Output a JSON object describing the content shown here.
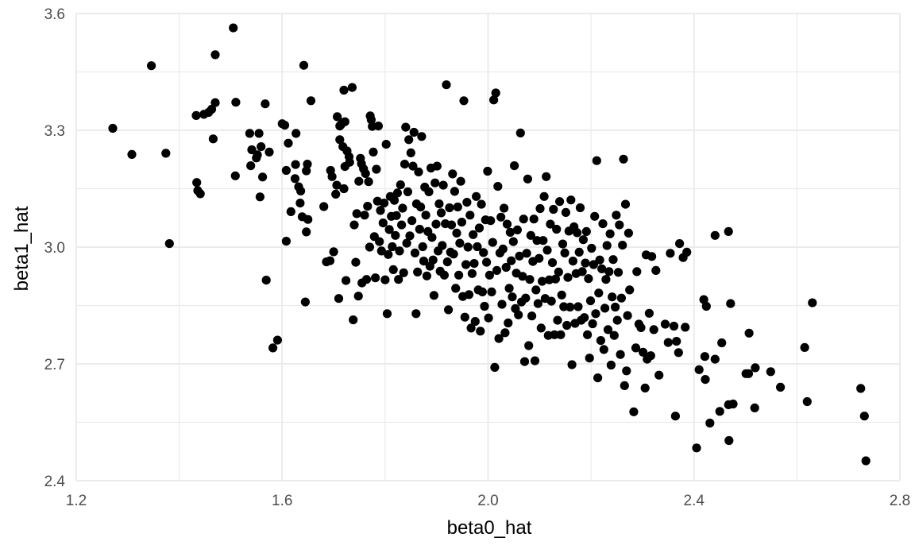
{
  "chart_data": {
    "type": "scatter",
    "title": "",
    "xlabel": "beta0_hat",
    "ylabel": "beta1_hat",
    "xlim": [
      1.2,
      2.8
    ],
    "ylim": [
      2.4,
      3.6
    ],
    "x_ticks": [
      1.2,
      1.6,
      2.0,
      2.4,
      2.8
    ],
    "y_ticks": [
      2.4,
      2.7,
      3.0,
      3.3,
      3.6
    ],
    "x_tick_labels": [
      "1.2",
      "1.6",
      "2.0",
      "2.4",
      "2.8"
    ],
    "y_tick_labels": [
      "2.4",
      "2.7",
      "3.0",
      "3.3",
      "3.6"
    ],
    "x_minor": [
      1.4,
      1.8,
      2.2,
      2.6
    ],
    "y_minor": [
      2.55,
      2.85,
      3.15,
      3.45
    ],
    "grid": true,
    "legend": "none",
    "point_color": "#000000",
    "points": [
      [
        1.271,
        3.305
      ],
      [
        1.308,
        3.238
      ],
      [
        1.346,
        3.466
      ],
      [
        1.374,
        3.241
      ],
      [
        1.381,
        3.009
      ],
      [
        1.433,
        3.338
      ],
      [
        1.434,
        3.166
      ],
      [
        1.436,
        3.145
      ],
      [
        1.441,
        3.137
      ],
      [
        1.448,
        3.341
      ],
      [
        1.457,
        3.346
      ],
      [
        1.463,
        3.354
      ],
      [
        1.466,
        3.278
      ],
      [
        1.47,
        3.371
      ],
      [
        1.47,
        3.494
      ],
      [
        1.505,
        3.563
      ],
      [
        1.51,
        3.372
      ],
      [
        1.509,
        3.183
      ],
      [
        1.537,
        3.292
      ],
      [
        1.539,
        3.209
      ],
      [
        1.541,
        3.25
      ],
      [
        1.55,
        3.229
      ],
      [
        1.552,
        3.237
      ],
      [
        1.555,
        3.292
      ],
      [
        1.557,
        3.129
      ],
      [
        1.559,
        3.258
      ],
      [
        1.562,
        3.18
      ],
      [
        1.567,
        3.368
      ],
      [
        1.569,
        2.915
      ],
      [
        1.575,
        3.244
      ],
      [
        1.582,
        2.741
      ],
      [
        1.591,
        2.761
      ],
      [
        1.6,
        3.317
      ],
      [
        1.605,
        3.313
      ],
      [
        1.608,
        3.197
      ],
      [
        1.608,
        3.015
      ],
      [
        1.612,
        3.267
      ],
      [
        1.617,
        3.091
      ],
      [
        1.626,
        3.212
      ],
      [
        1.625,
        3.176
      ],
      [
        1.627,
        3.292
      ],
      [
        1.632,
        3.155
      ],
      [
        1.635,
        3.113
      ],
      [
        1.636,
        3.144
      ],
      [
        1.639,
        3.078
      ],
      [
        1.642,
        3.467
      ],
      [
        1.645,
        2.859
      ],
      [
        1.647,
        3.196
      ],
      [
        1.647,
        3.039
      ],
      [
        1.649,
        3.213
      ],
      [
        1.65,
        3.071
      ],
      [
        1.656,
        3.376
      ],
      [
        1.681,
        3.104
      ],
      [
        1.686,
        2.962
      ],
      [
        1.693,
        2.965
      ],
      [
        1.694,
        3.197
      ],
      [
        1.697,
        3.181
      ],
      [
        1.7,
        2.988
      ],
      [
        1.704,
        3.136
      ],
      [
        1.706,
        3.159
      ],
      [
        1.707,
        3.335
      ],
      [
        1.71,
        2.868
      ],
      [
        1.712,
        3.311
      ],
      [
        1.712,
        3.276
      ],
      [
        1.714,
        3.314
      ],
      [
        1.718,
        3.258
      ],
      [
        1.718,
        3.32
      ],
      [
        1.72,
        3.403
      ],
      [
        1.72,
        3.15
      ],
      [
        1.722,
        3.322
      ],
      [
        1.722,
        3.207
      ],
      [
        1.724,
        2.914
      ],
      [
        1.726,
        3.247
      ],
      [
        1.73,
        3.232
      ],
      [
        1.731,
        3.218
      ],
      [
        1.736,
        3.41
      ],
      [
        1.738,
        2.813
      ],
      [
        1.74,
        3.057
      ],
      [
        1.743,
        2.961
      ],
      [
        1.745,
        3.086
      ],
      [
        1.748,
        2.874
      ],
      [
        1.749,
        3.169
      ],
      [
        1.752,
        3.228
      ],
      [
        1.754,
        3.214
      ],
      [
        1.755,
        2.908
      ],
      [
        1.758,
        3.201
      ],
      [
        1.76,
        3.082
      ],
      [
        1.762,
        3.189
      ],
      [
        1.764,
        2.917
      ],
      [
        1.766,
        3.105
      ],
      [
        1.768,
        3.168
      ],
      [
        1.77,
        3.0
      ],
      [
        1.771,
        3.337
      ],
      [
        1.773,
        3.327
      ],
      [
        1.775,
        3.31
      ],
      [
        1.777,
        3.244
      ],
      [
        1.779,
        3.027
      ],
      [
        1.781,
        2.921
      ],
      [
        1.783,
        3.2
      ],
      [
        1.785,
        3.118
      ],
      [
        1.787,
        3.311
      ],
      [
        1.789,
        3.014
      ],
      [
        1.791,
        3.094
      ],
      [
        1.793,
        2.99
      ],
      [
        1.796,
        3.062
      ],
      [
        1.798,
        3.113
      ],
      [
        1.8,
        2.916
      ],
      [
        1.802,
        3.264
      ],
      [
        1.804,
        2.829
      ],
      [
        1.806,
        2.981
      ],
      [
        1.808,
        3.045
      ],
      [
        1.81,
        3.13
      ],
      [
        1.812,
        3.079
      ],
      [
        1.814,
        3.001
      ],
      [
        1.816,
        2.942
      ],
      [
        1.818,
        3.12
      ],
      [
        1.82,
        3.03
      ],
      [
        1.822,
        3.081
      ],
      [
        1.824,
        3.139
      ],
      [
        1.826,
        2.917
      ],
      [
        1.828,
        2.99
      ],
      [
        1.83,
        3.16
      ],
      [
        1.832,
        3.057
      ],
      [
        1.834,
        3.1
      ],
      [
        1.836,
        2.934
      ],
      [
        1.838,
        3.213
      ],
      [
        1.84,
        3.308
      ],
      [
        1.842,
        3.01
      ],
      [
        1.844,
        3.142
      ],
      [
        1.846,
        3.276
      ],
      [
        1.848,
        3.029
      ],
      [
        1.85,
        3.242
      ],
      [
        1.852,
        3.068
      ],
      [
        1.854,
        3.208
      ],
      [
        1.856,
        3.295
      ],
      [
        1.858,
        2.985
      ],
      [
        1.86,
        2.829
      ],
      [
        1.861,
        3.111
      ],
      [
        1.863,
        2.936
      ],
      [
        1.865,
        3.193
      ],
      [
        1.867,
        3.046
      ],
      [
        1.869,
        3.103
      ],
      [
        1.871,
        3.284
      ],
      [
        1.873,
        3.001
      ],
      [
        1.875,
        2.964
      ],
      [
        1.877,
        3.154
      ],
      [
        1.879,
        3.082
      ],
      [
        1.881,
        2.926
      ],
      [
        1.883,
        3.04
      ],
      [
        1.885,
        3.142
      ],
      [
        1.887,
        2.951
      ],
      [
        1.889,
        3.203
      ],
      [
        1.891,
        3.025
      ],
      [
        1.893,
        2.967
      ],
      [
        1.895,
        2.876
      ],
      [
        1.897,
        3.165
      ],
      [
        1.899,
        3.059
      ],
      [
        1.901,
        3.208
      ],
      [
        1.903,
        2.99
      ],
      [
        1.905,
        3.111
      ],
      [
        1.907,
        2.938
      ],
      [
        1.909,
        3.088
      ],
      [
        1.911,
        3.004
      ],
      [
        1.913,
        3.159
      ],
      [
        1.915,
        2.928
      ],
      [
        1.917,
        3.06
      ],
      [
        1.919,
        3.417
      ],
      [
        1.921,
        2.962
      ],
      [
        1.923,
        2.839
      ],
      [
        1.925,
        3.101
      ],
      [
        1.927,
        2.987
      ],
      [
        1.929,
        3.057
      ],
      [
        1.931,
        3.188
      ],
      [
        1.933,
        2.982
      ],
      [
        1.935,
        3.143
      ],
      [
        1.937,
        2.894
      ],
      [
        1.939,
        3.036
      ],
      [
        1.941,
        3.103
      ],
      [
        1.943,
        2.928
      ],
      [
        1.945,
        3.01
      ],
      [
        1.947,
        3.169
      ],
      [
        1.949,
        3.064
      ],
      [
        1.951,
        2.873
      ],
      [
        1.953,
        3.376
      ],
      [
        1.955,
        2.82
      ],
      [
        1.957,
        2.955
      ],
      [
        1.959,
        3.115
      ],
      [
        1.961,
        3.0
      ],
      [
        1.963,
        2.878
      ],
      [
        1.965,
        3.082
      ],
      [
        1.967,
        2.792
      ],
      [
        1.969,
        2.932
      ],
      [
        1.971,
        3.032
      ],
      [
        1.973,
        2.958
      ],
      [
        1.975,
        2.809
      ],
      [
        1.977,
        3.13
      ],
      [
        1.979,
        3.001
      ],
      [
        1.981,
        2.89
      ],
      [
        1.983,
        3.049
      ],
      [
        1.985,
        2.784
      ],
      [
        1.987,
        3.11
      ],
      [
        1.989,
        2.885
      ],
      [
        1.991,
        2.986
      ],
      [
        1.993,
        2.848
      ],
      [
        1.995,
        3.07
      ],
      [
        1.997,
        2.961
      ],
      [
        1.999,
        3.195
      ],
      [
        2.001,
        2.818
      ],
      [
        2.003,
        2.928
      ],
      [
        2.005,
        3.068
      ],
      [
        2.007,
        2.885
      ],
      [
        2.009,
        3.012
      ],
      [
        2.011,
        3.378
      ],
      [
        2.013,
        2.691
      ],
      [
        2.015,
        3.396
      ],
      [
        2.017,
        2.94
      ],
      [
        2.019,
        3.156
      ],
      [
        2.021,
        2.765
      ],
      [
        2.023,
        2.985
      ],
      [
        2.025,
        3.077
      ],
      [
        2.027,
        2.853
      ],
      [
        2.029,
        2.995
      ],
      [
        2.031,
        3.1
      ],
      [
        2.033,
        2.78
      ],
      [
        2.035,
        2.948
      ],
      [
        2.037,
        3.059
      ],
      [
        2.039,
        2.805
      ],
      [
        2.041,
        2.894
      ],
      [
        2.043,
        3.038
      ],
      [
        2.045,
        2.965
      ],
      [
        2.047,
        2.872
      ],
      [
        2.049,
        3.014
      ],
      [
        2.051,
        3.209
      ],
      [
        2.053,
        2.842
      ],
      [
        2.055,
        2.933
      ],
      [
        2.057,
        3.044
      ],
      [
        2.059,
        2.826
      ],
      [
        2.061,
        2.977
      ],
      [
        2.063,
        3.293
      ],
      [
        2.065,
        2.859
      ],
      [
        2.067,
        2.925
      ],
      [
        2.069,
        3.072
      ],
      [
        2.071,
        2.706
      ],
      [
        2.073,
        2.869
      ],
      [
        2.075,
        2.984
      ],
      [
        2.077,
        3.175
      ],
      [
        2.079,
        2.747
      ],
      [
        2.081,
        2.917
      ],
      [
        2.083,
        3.03
      ],
      [
        2.085,
        2.823
      ],
      [
        2.087,
        2.963
      ],
      [
        2.089,
        3.072
      ],
      [
        2.091,
        2.708
      ],
      [
        2.093,
        2.89
      ],
      [
        2.095,
        3.017
      ],
      [
        2.097,
        2.855
      ],
      [
        2.099,
        2.971
      ],
      [
        2.101,
        3.099
      ],
      [
        2.103,
        2.792
      ],
      [
        2.105,
        2.912
      ],
      [
        2.107,
        3.017
      ],
      [
        2.109,
        3.13
      ],
      [
        2.111,
        2.868
      ],
      [
        2.113,
        3.181
      ],
      [
        2.115,
        2.992
      ],
      [
        2.117,
        2.773
      ],
      [
        2.119,
        2.916
      ],
      [
        2.121,
        3.059
      ],
      [
        2.123,
        2.861
      ],
      [
        2.125,
        2.96
      ],
      [
        2.127,
        3.097
      ],
      [
        2.129,
        2.775
      ],
      [
        2.131,
        2.918
      ],
      [
        2.133,
        3.046
      ],
      [
        2.135,
        2.812
      ],
      [
        2.137,
        2.936
      ],
      [
        2.139,
        3.117
      ],
      [
        2.141,
        2.775
      ],
      [
        2.143,
        2.877
      ],
      [
        2.145,
        3.008
      ],
      [
        2.147,
        2.847
      ],
      [
        2.149,
        2.985
      ],
      [
        2.151,
        3.089
      ],
      [
        2.153,
        2.799
      ],
      [
        2.155,
        2.922
      ],
      [
        2.157,
        3.041
      ],
      [
        2.159,
        2.846
      ],
      [
        2.161,
        3.121
      ],
      [
        2.163,
        2.698
      ],
      [
        2.165,
        2.964
      ],
      [
        2.167,
        3.052
      ],
      [
        2.169,
        2.804
      ],
      [
        2.171,
        2.932
      ],
      [
        2.173,
        3.037
      ],
      [
        2.175,
        2.847
      ],
      [
        2.177,
        2.987
      ],
      [
        2.179,
        3.101
      ],
      [
        2.181,
        2.812
      ],
      [
        2.183,
        2.937
      ],
      [
        2.185,
        3.019
      ],
      [
        2.187,
        2.819
      ],
      [
        2.189,
        2.959
      ],
      [
        2.191,
        3.04
      ],
      [
        2.193,
        2.775
      ],
      [
        2.195,
        2.919
      ],
      [
        2.197,
        2.715
      ],
      [
        2.199,
        2.862
      ],
      [
        2.201,
        2.997
      ],
      [
        2.203,
        2.803
      ],
      [
        2.205,
        2.955
      ],
      [
        2.207,
        3.079
      ],
      [
        2.209,
        2.829
      ],
      [
        2.211,
        3.222
      ],
      [
        2.213,
        2.664
      ],
      [
        2.215,
        2.882
      ],
      [
        2.217,
        2.967
      ],
      [
        2.219,
        2.76
      ],
      [
        2.221,
        2.944
      ],
      [
        2.223,
        3.06
      ],
      [
        2.225,
        2.737
      ],
      [
        2.227,
        2.843
      ],
      [
        2.229,
        2.917
      ],
      [
        2.231,
        3.004
      ],
      [
        2.233,
        2.788
      ],
      [
        2.235,
        2.937
      ],
      [
        2.237,
        3.034
      ],
      [
        2.239,
        2.697
      ],
      [
        2.241,
        2.872
      ],
      [
        2.243,
        2.968
      ],
      [
        2.245,
        2.773
      ],
      [
        2.247,
        2.846
      ],
      [
        2.249,
        3.082
      ],
      [
        2.251,
        2.812
      ],
      [
        2.253,
        2.935
      ],
      [
        2.255,
        3.057
      ],
      [
        2.257,
        2.724
      ],
      [
        2.259,
        2.869
      ],
      [
        2.261,
        3.005
      ],
      [
        2.263,
        3.226
      ],
      [
        2.265,
        2.644
      ],
      [
        2.267,
        3.11
      ],
      [
        2.269,
        2.682
      ],
      [
        2.271,
        2.824
      ],
      [
        2.273,
        3.036
      ],
      [
        2.275,
        2.89
      ],
      [
        2.283,
        2.577
      ],
      [
        2.287,
        2.741
      ],
      [
        2.289,
        2.937
      ],
      [
        2.293,
        2.802
      ],
      [
        2.297,
        2.793
      ],
      [
        2.301,
        2.73
      ],
      [
        2.305,
        2.638
      ],
      [
        2.307,
        2.98
      ],
      [
        2.309,
        2.712
      ],
      [
        2.313,
        2.83
      ],
      [
        2.316,
        2.721
      ],
      [
        2.318,
        2.976
      ],
      [
        2.322,
        2.788
      ],
      [
        2.326,
        2.94
      ],
      [
        2.332,
        2.671
      ],
      [
        2.344,
        2.802
      ],
      [
        2.35,
        2.755
      ],
      [
        2.354,
        2.984
      ],
      [
        2.361,
        2.797
      ],
      [
        2.364,
        2.566
      ],
      [
        2.366,
        2.758
      ],
      [
        2.37,
        2.729
      ],
      [
        2.372,
        3.009
      ],
      [
        2.379,
        2.973
      ],
      [
        2.383,
        2.794
      ],
      [
        2.386,
        2.987
      ],
      [
        2.405,
        2.484
      ],
      [
        2.41,
        2.685
      ],
      [
        2.419,
        2.865
      ],
      [
        2.421,
        2.719
      ],
      [
        2.422,
        2.66
      ],
      [
        2.424,
        2.848
      ],
      [
        2.431,
        2.548
      ],
      [
        2.441,
        2.712
      ],
      [
        2.45,
        2.578
      ],
      [
        2.454,
        2.754
      ],
      [
        2.467,
        2.595
      ],
      [
        2.468,
        2.503
      ],
      [
        2.471,
        2.855
      ],
      [
        2.476,
        2.597
      ],
      [
        2.501,
        2.675
      ],
      [
        2.506,
        2.675
      ],
      [
        2.507,
        2.779
      ],
      [
        2.518,
        2.587
      ],
      [
        2.519,
        2.69
      ],
      [
        2.549,
        2.68
      ],
      [
        2.568,
        2.64
      ],
      [
        2.615,
        2.742
      ],
      [
        2.62,
        2.603
      ],
      [
        2.63,
        2.857
      ],
      [
        2.724,
        2.637
      ],
      [
        2.731,
        2.566
      ],
      [
        2.734,
        2.451
      ],
      [
        2.441,
        3.03
      ],
      [
        2.467,
        3.04
      ]
    ]
  }
}
